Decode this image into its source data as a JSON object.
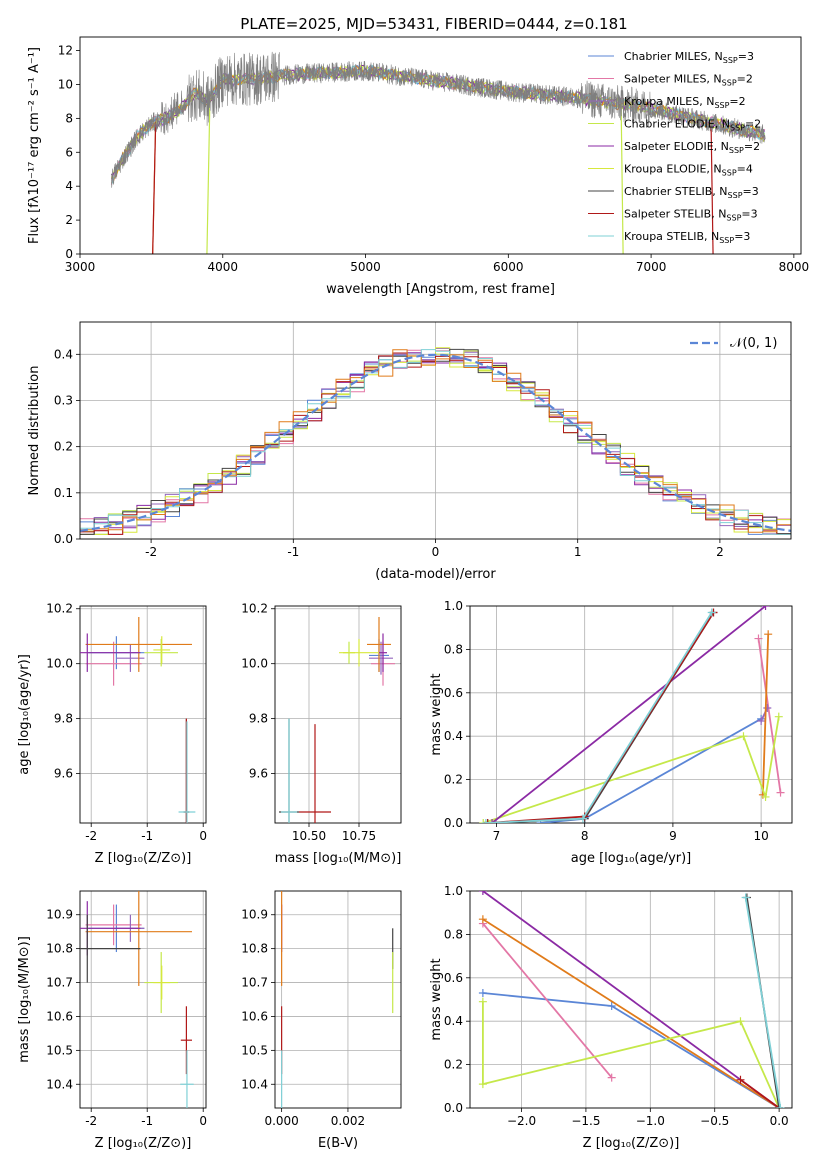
{
  "title": "PLATE=2025, MJD=53431, FIBERID=0444, z=0.181",
  "colors": {
    "chabrier_miles": "#5b86d6",
    "salpeter_miles": "#e377a6",
    "kroupa_miles": "#9467bd",
    "chabrier_elodie": "#c5e84a",
    "salpeter_elodie": "#8b2aa4",
    "kroupa_elodie": "#d7e83d",
    "chabrier_stelib": "#444444",
    "salpeter_stelib": "#b01818",
    "kroupa_stelib": "#7fd0d6",
    "orange": "#e07b1a",
    "data_grey": "#7f7f7f",
    "gaussian": "#5b86d6",
    "grid": "#b0b0b0"
  },
  "chart_data": [
    {
      "id": "spectrum",
      "type": "line",
      "xlabel": "wavelength [Angstrom, rest frame]",
      "ylabel": "Flux [fλ10⁻¹⁷ erg cm⁻² s⁻¹ A⁻¹]",
      "xlim": [
        3000,
        8050
      ],
      "ylim": [
        0,
        12.8
      ],
      "xticks": [
        3000,
        4000,
        5000,
        6000,
        7000,
        8000
      ],
      "yticks": [
        0,
        2,
        4,
        6,
        8,
        10,
        12
      ],
      "grid": false,
      "legend_position": "top-right",
      "legend": [
        {
          "model": "Chabrier MILES, N",
          "sub": "SSP",
          "n": "=3",
          "color_key": "chabrier_miles"
        },
        {
          "model": "Salpeter MILES, N",
          "sub": "SSP",
          "n": "=2",
          "color_key": "salpeter_miles"
        },
        {
          "model": "Kroupa MILES, N",
          "sub": "SSP",
          "n": "=2",
          "color_key": "kroupa_miles"
        },
        {
          "model": "Chabrier ELODIE, N",
          "sub": "SSP",
          "n": "=2",
          "color_key": "chabrier_elodie"
        },
        {
          "model": "Salpeter ELODIE, N",
          "sub": "SSP",
          "n": "=2",
          "color_key": "salpeter_elodie"
        },
        {
          "model": "Kroupa ELODIE, N",
          "sub": "SSP",
          "n": "=4",
          "color_key": "kroupa_elodie"
        },
        {
          "model": "Chabrier STELIB, N",
          "sub": "SSP",
          "n": "=3",
          "color_key": "chabrier_stelib"
        },
        {
          "model": "Salpeter STELIB, N",
          "sub": "SSP",
          "n": "=3",
          "color_key": "salpeter_stelib"
        },
        {
          "model": "Kroupa STELIB, N",
          "sub": "SSP",
          "n": "=3",
          "color_key": "kroupa_stelib"
        }
      ],
      "continuum_knots": [
        [
          3220,
          4.4
        ],
        [
          3300,
          5.6
        ],
        [
          3400,
          6.9
        ],
        [
          3500,
          7.7
        ],
        [
          3600,
          8.0
        ],
        [
          3700,
          8.5
        ],
        [
          3800,
          9.5
        ],
        [
          3900,
          9.0
        ],
        [
          4000,
          10.3
        ],
        [
          4200,
          10.3
        ],
        [
          4500,
          10.6
        ],
        [
          5000,
          10.8
        ],
        [
          5500,
          10.2
        ],
        [
          6000,
          9.6
        ],
        [
          6500,
          9.2
        ],
        [
          7000,
          8.6
        ],
        [
          7500,
          7.6
        ],
        [
          7800,
          7.0
        ]
      ],
      "data_range": [
        3220,
        7800
      ],
      "model_cutoffs": [
        {
          "color_key": "orange",
          "start": 3530
        },
        {
          "color_key": "salpeter_stelib",
          "start": 3530,
          "end": 7420
        },
        {
          "color_key": "chabrier_elodie",
          "start": 3910,
          "end": 6790
        }
      ]
    },
    {
      "id": "residuals",
      "type": "histogram",
      "xlabel": "(data-model)/error",
      "ylabel": "Normed distribution",
      "xlim": [
        -2.5,
        2.5
      ],
      "ylim": [
        0,
        0.47
      ],
      "xticks": [
        -2,
        -1,
        0,
        1,
        2
      ],
      "yticks": [
        0.0,
        0.1,
        0.2,
        0.3,
        0.4
      ],
      "grid": true,
      "legend_position": "top-right",
      "gaussian_label": "𝒩(0, 1)",
      "bin_width": 0.1
    },
    {
      "id": "age_vs_Z",
      "type": "errorbar",
      "xlabel": "Z [log₁₀(Z/Z⊙)]",
      "ylabel": "age  [log₁₀(age/yr)]",
      "xlim": [
        -2.2,
        0.05
      ],
      "ylim": [
        9.42,
        10.21
      ],
      "xticks": [
        -2,
        -1,
        0
      ],
      "yticks": [
        9.6,
        9.8,
        10.0,
        10.2
      ],
      "points": [
        {
          "color_key": "chabrier_miles",
          "x": -1.55,
          "xerr": 0.5,
          "y": 10.04,
          "yerr": 0.06
        },
        {
          "color_key": "salpeter_miles",
          "x": -1.6,
          "xerr": 0.5,
          "y": 10.0,
          "yerr": 0.08
        },
        {
          "color_key": "kroupa_miles",
          "x": -1.3,
          "xerr": 0.25,
          "y": 10.02,
          "yerr": 0.05
        },
        {
          "color_key": "orange",
          "x": -1.15,
          "xerr": 0.95,
          "y": 10.07,
          "yerr": 0.1
        },
        {
          "color_key": "chabrier_elodie",
          "x": -0.75,
          "xerr": 0.3,
          "y": 10.04,
          "yerr": 0.05
        },
        {
          "color_key": "salpeter_elodie",
          "x": -2.07,
          "xerr": 0.95,
          "y": 10.04,
          "yerr": 0.07
        },
        {
          "color_key": "kroupa_elodie",
          "x": -0.74,
          "xerr": 0.15,
          "y": 10.05,
          "yerr": 0.05
        },
        {
          "color_key": "chabrier_stelib",
          "x": -0.3,
          "xerr": 0.05,
          "y": 9.46,
          "yerr": 0.34
        },
        {
          "color_key": "salpeter_stelib",
          "x": -0.3,
          "xerr": 0.05,
          "y": 9.46,
          "yerr": 0.34
        },
        {
          "color_key": "kroupa_stelib",
          "x": -0.29,
          "xerr": 0.15,
          "y": 9.46,
          "yerr": 0.33
        }
      ]
    },
    {
      "id": "age_vs_mass",
      "type": "errorbar",
      "xlabel": "mass [log₁₀(M/M⊙)]",
      "ylabel": "",
      "xlim": [
        10.33,
        10.96
      ],
      "ylim": [
        9.42,
        10.21
      ],
      "xticks": [
        10.5,
        10.75
      ],
      "xtick_labels": [
        "10.50",
        "10.75"
      ],
      "yticks": [
        9.6,
        9.8,
        10.0,
        10.2
      ],
      "points": [
        {
          "color_key": "chabrier_miles",
          "x": 10.85,
          "xerr": 0.05,
          "y": 10.03,
          "yerr": 0.06
        },
        {
          "color_key": "salpeter_miles",
          "x": 10.87,
          "xerr": 0.06,
          "y": 10.0,
          "yerr": 0.08
        },
        {
          "color_key": "kroupa_miles",
          "x": 10.86,
          "xerr": 0.06,
          "y": 10.02,
          "yerr": 0.06
        },
        {
          "color_key": "orange",
          "x": 10.85,
          "xerr": 0.06,
          "y": 10.07,
          "yerr": 0.1
        },
        {
          "color_key": "chabrier_elodie",
          "x": 10.7,
          "xerr": 0.03,
          "y": 10.04,
          "yerr": 0.04
        },
        {
          "color_key": "salpeter_elodie",
          "x": 10.87,
          "xerr": 0.02,
          "y": 10.04,
          "yerr": 0.07
        },
        {
          "color_key": "kroupa_elodie",
          "x": 10.75,
          "xerr": 0.1,
          "y": 10.04,
          "yerr": 0.05
        },
        {
          "color_key": "chabrier_stelib",
          "x": 10.4,
          "xerr": 0.05,
          "y": 9.46,
          "yerr": 0.34
        },
        {
          "color_key": "salpeter_stelib",
          "x": 10.53,
          "xerr": 0.08,
          "y": 9.46,
          "yerr": 0.32
        },
        {
          "color_key": "kroupa_stelib",
          "x": 10.4,
          "xerr": 0.04,
          "y": 9.46,
          "yerr": 0.34
        }
      ]
    },
    {
      "id": "weight_vs_age",
      "type": "line",
      "xlabel": "age  [log₁₀(age/yr)]",
      "ylabel": "mass weight",
      "xlim": [
        6.7,
        10.35
      ],
      "ylim": [
        0.0,
        1.0
      ],
      "xticks": [
        7,
        8,
        9,
        10
      ],
      "yticks": [
        0.0,
        0.2,
        0.4,
        0.6,
        0.8,
        1.0
      ],
      "series": [
        {
          "color_key": "chabrier_miles",
          "x": [
            7.5,
            8.0,
            10.0
          ],
          "y": [
            0.0,
            0.02,
            0.48
          ]
        },
        {
          "color_key": "salpeter_miles",
          "x": [
            9.97,
            10.22
          ],
          "y": [
            0.85,
            0.14
          ]
        },
        {
          "color_key": "kroupa_miles",
          "x": [
            10.0,
            10.07
          ],
          "y": [
            0.47,
            0.53
          ]
        },
        {
          "color_key": "orange",
          "x": [
            10.02,
            10.08
          ],
          "y": [
            0.13,
            0.87
          ]
        },
        {
          "color_key": "chabrier_elodie",
          "x": [
            6.85,
            9.8,
            10.05,
            10.2
          ],
          "y": [
            0.0,
            0.4,
            0.12,
            0.49
          ]
        },
        {
          "color_key": "salpeter_elodie",
          "x": [
            6.95,
            10.05
          ],
          "y": [
            0.0,
            1.0
          ]
        },
        {
          "color_key": "chabrier_stelib",
          "x": [
            6.9,
            8.0,
            9.46
          ],
          "y": [
            0.0,
            0.02,
            0.97
          ]
        },
        {
          "color_key": "salpeter_stelib",
          "x": [
            6.9,
            8.0,
            9.46
          ],
          "y": [
            0.0,
            0.03,
            0.97
          ]
        },
        {
          "color_key": "kroupa_stelib",
          "x": [
            6.88,
            7.98,
            9.44
          ],
          "y": [
            0.0,
            0.02,
            0.97
          ]
        }
      ]
    },
    {
      "id": "mass_vs_Z",
      "type": "errorbar",
      "xlabel": "Z [log₁₀(Z/Z⊙)]",
      "ylabel": "mass [log₁₀(M/M⊙)]",
      "xlim": [
        -2.2,
        0.05
      ],
      "ylim": [
        10.33,
        10.97
      ],
      "xticks": [
        -2,
        -1,
        0
      ],
      "yticks": [
        10.4,
        10.5,
        10.6,
        10.7,
        10.8,
        10.9
      ],
      "points": [
        {
          "color_key": "chabrier_miles",
          "x": -1.55,
          "xerr": 0.5,
          "y": 10.86,
          "yerr": 0.07
        },
        {
          "color_key": "salpeter_miles",
          "x": -1.6,
          "xerr": 0.5,
          "y": 10.87,
          "yerr": 0.06
        },
        {
          "color_key": "kroupa_miles",
          "x": -1.3,
          "xerr": 0.25,
          "y": 10.86,
          "yerr": 0.04
        },
        {
          "color_key": "orange",
          "x": -1.15,
          "xerr": 0.95,
          "y": 10.85,
          "yerr": 0.16
        },
        {
          "color_key": "chabrier_elodie",
          "x": -0.75,
          "xerr": 0.3,
          "y": 10.7,
          "yerr": 0.09
        },
        {
          "color_key": "salpeter_elodie",
          "x": -2.07,
          "xerr": 0.95,
          "y": 10.86,
          "yerr": 0.08
        },
        {
          "color_key": "kroupa_elodie",
          "x": -0.74,
          "xerr": 0.15,
          "y": 10.7,
          "yerr": 0.05
        },
        {
          "color_key": "chabrier_stelib",
          "x": -2.07,
          "xerr": 0.95,
          "y": 10.8,
          "yerr": 0.1
        },
        {
          "color_key": "salpeter_stelib",
          "x": -0.3,
          "xerr": 0.1,
          "y": 10.53,
          "yerr": 0.1
        },
        {
          "color_key": "kroupa_stelib",
          "x": -0.29,
          "xerr": 0.12,
          "y": 10.4,
          "yerr": 0.1
        }
      ]
    },
    {
      "id": "mass_vs_ebv",
      "type": "errorbar",
      "xlabel": "E(B-V)",
      "ylabel": "",
      "xlim": [
        -0.0002,
        0.0036
      ],
      "ylim": [
        10.33,
        10.97
      ],
      "xticks": [
        0.0,
        0.002
      ],
      "xtick_labels": [
        "0.000",
        "0.002"
      ],
      "yticks": [
        10.4,
        10.5,
        10.6,
        10.7,
        10.8,
        10.9
      ],
      "points": [
        {
          "color_key": "salpeter_elodie",
          "x": 0.0,
          "xerr": 0,
          "y": 10.86,
          "yerr": 0.07
        },
        {
          "color_key": "salpeter_miles",
          "x": 0.0,
          "xerr": 0,
          "y": 10.87,
          "yerr": 0.06
        },
        {
          "color_key": "orange",
          "x": 0.0,
          "xerr": 0,
          "y": 10.85,
          "yerr": 0.16
        },
        {
          "color_key": "salpeter_stelib",
          "x": 0.0,
          "xerr": 0,
          "y": 10.53,
          "yerr": 0.1
        },
        {
          "color_key": "kroupa_stelib",
          "x": 0.0,
          "xerr": 0,
          "y": 10.4,
          "yerr": 0.1
        },
        {
          "color_key": "chabrier_stelib",
          "x": 0.00335,
          "xerr": 0,
          "y": 10.8,
          "yerr": 0.06
        },
        {
          "color_key": "chabrier_elodie",
          "x": 0.00335,
          "xerr": 0,
          "y": 10.7,
          "yerr": 0.09
        }
      ]
    },
    {
      "id": "weight_vs_Z",
      "type": "line",
      "xlabel": "Z [log₁₀(Z/Z⊙)]",
      "ylabel": "mass weight",
      "xlim": [
        -2.4,
        0.1
      ],
      "ylim": [
        0.0,
        1.0
      ],
      "xticks": [
        -2.0,
        -1.5,
        -1.0,
        -0.5,
        0.0
      ],
      "xtick_labels": [
        "−2.0",
        "−1.5",
        "−1.0",
        "−0.5",
        "0.0"
      ],
      "yticks": [
        0.0,
        0.2,
        0.4,
        0.6,
        0.8,
        1.0
      ],
      "series": [
        {
          "color_key": "chabrier_miles",
          "x": [
            -2.3,
            -1.3,
            0.0
          ],
          "y": [
            0.53,
            0.47,
            0.0
          ]
        },
        {
          "color_key": "salpeter_miles",
          "x": [
            -2.3,
            -1.3
          ],
          "y": [
            0.85,
            0.14
          ]
        },
        {
          "color_key": "orange",
          "x": [
            -2.3,
            0.0
          ],
          "y": [
            0.87,
            0.0
          ]
        },
        {
          "color_key": "salpeter_elodie",
          "x": [
            -2.3,
            0.0
          ],
          "y": [
            1.0,
            0.0
          ]
        },
        {
          "color_key": "chabrier_elodie",
          "x": [
            -2.3,
            -2.3,
            -0.3,
            0.0
          ],
          "y": [
            0.49,
            0.11,
            0.4,
            0.0
          ]
        },
        {
          "color_key": "salpeter_stelib",
          "x": [
            -0.3,
            0.0
          ],
          "y": [
            0.13,
            0.0
          ]
        },
        {
          "color_key": "chabrier_stelib",
          "x": [
            -0.25,
            0.0
          ],
          "y": [
            0.97,
            0.0
          ]
        },
        {
          "color_key": "kroupa_stelib",
          "x": [
            -0.26,
            0.01
          ],
          "y": [
            0.97,
            0.0
          ]
        }
      ]
    }
  ]
}
